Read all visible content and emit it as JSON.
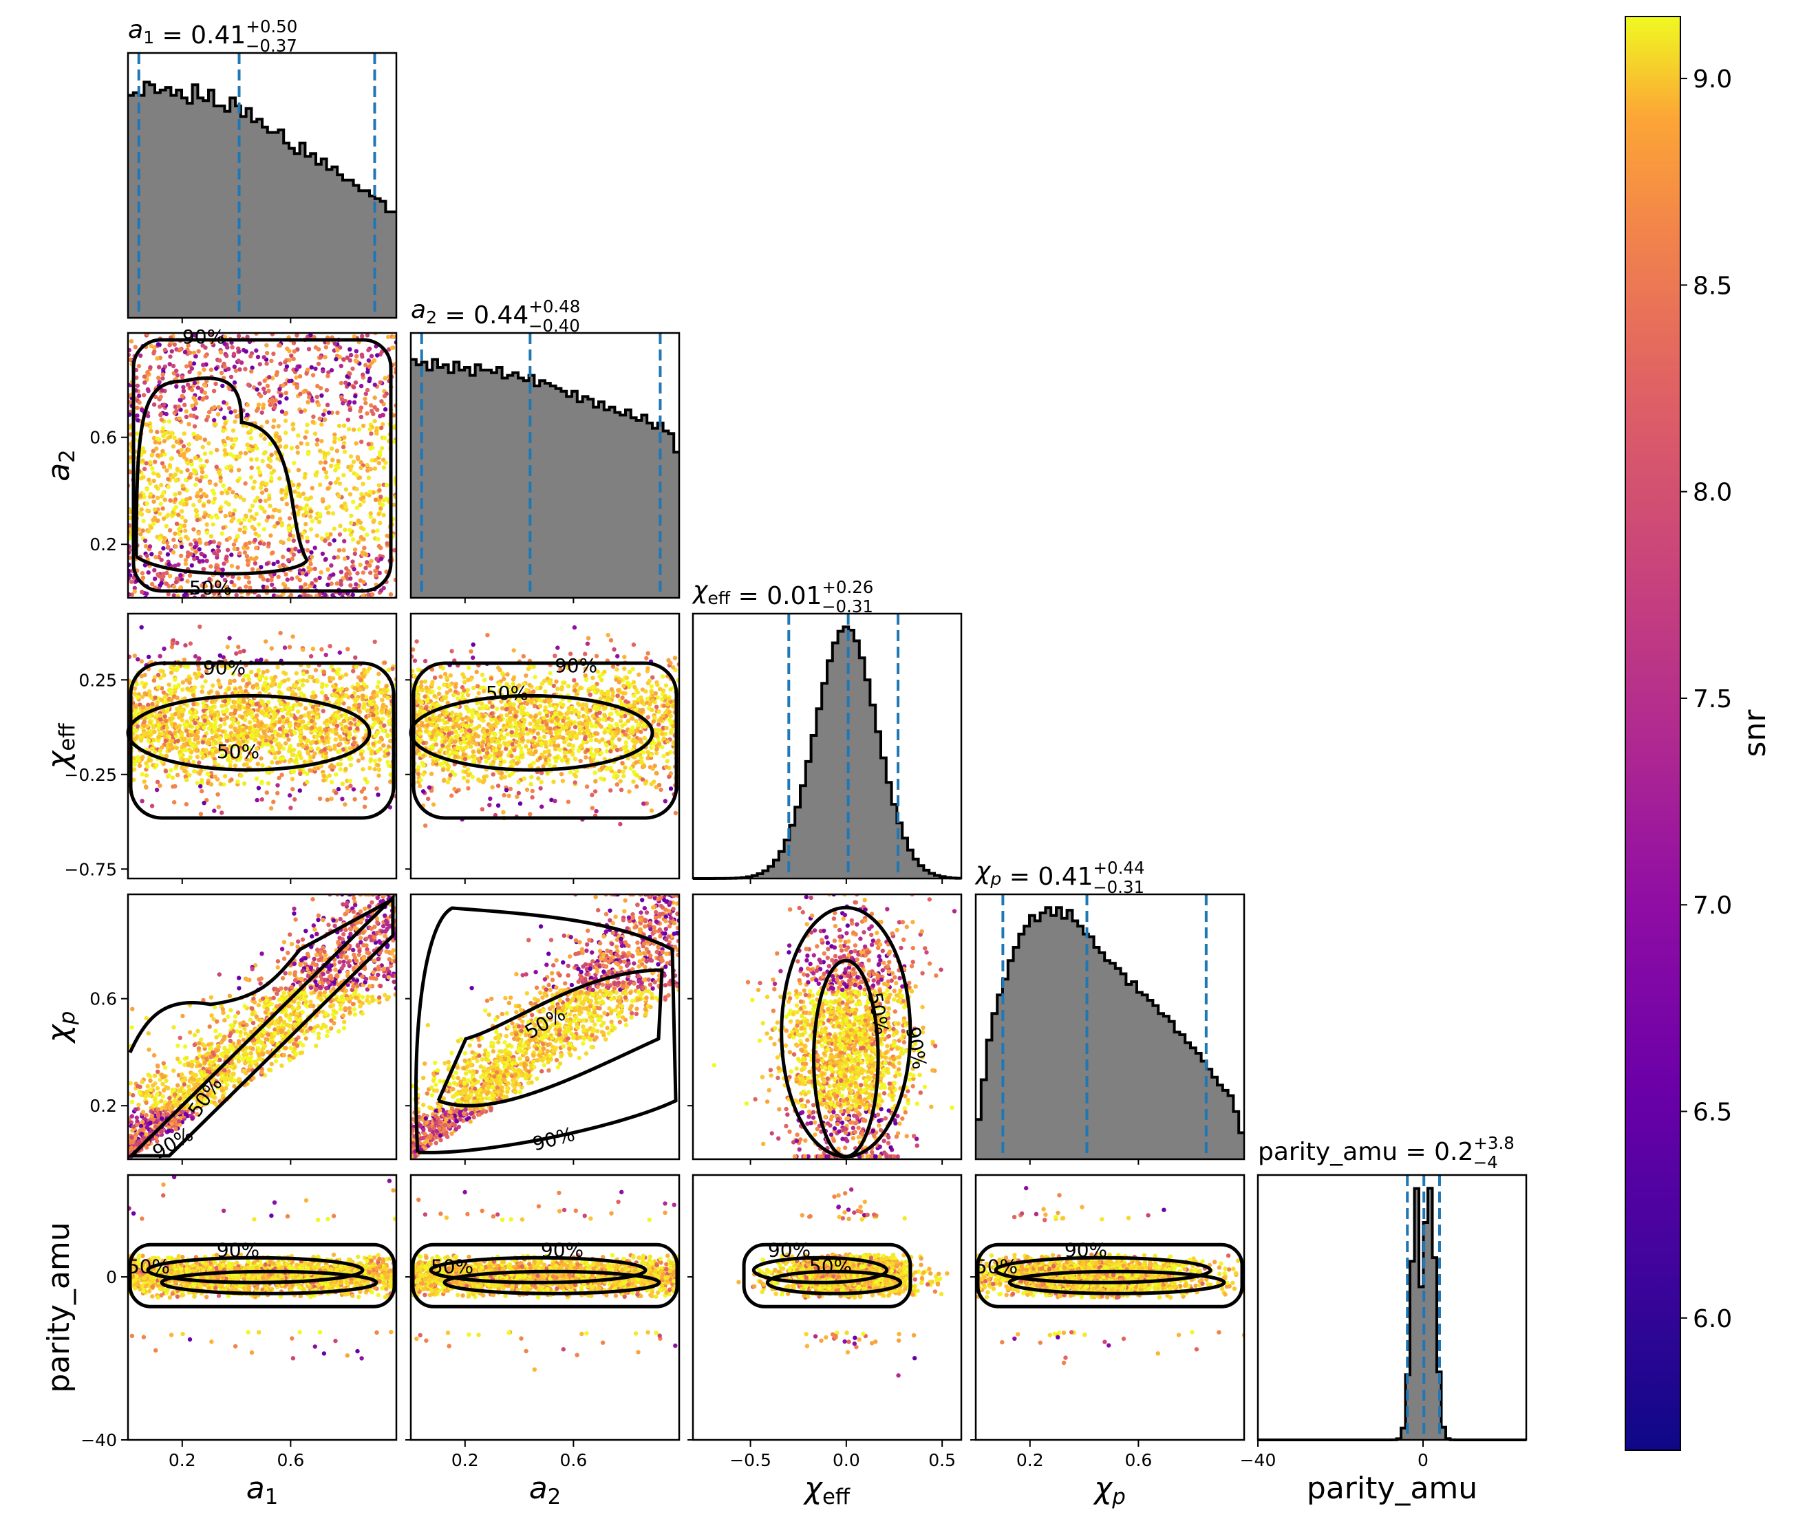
{
  "chart_data": {
    "type": "corner",
    "parameters": [
      {
        "key": "a1",
        "label": "a_1",
        "range": [
          0.0,
          0.99
        ],
        "median": 0.41,
        "plus": "0.50",
        "minus": "0.37",
        "title_value": "0.41",
        "hist": [
          0.84,
          0.85,
          0.84,
          0.89,
          0.88,
          0.85,
          0.86,
          0.87,
          0.84,
          0.86,
          0.83,
          0.81,
          0.88,
          0.83,
          0.82,
          0.86,
          0.8,
          0.8,
          0.78,
          0.83,
          0.8,
          0.76,
          0.79,
          0.74,
          0.75,
          0.72,
          0.7,
          0.7,
          0.71,
          0.66,
          0.64,
          0.62,
          0.66,
          0.61,
          0.62,
          0.58,
          0.6,
          0.56,
          0.57,
          0.54,
          0.52,
          0.52,
          0.5,
          0.48,
          0.48,
          0.46,
          0.45,
          0.44,
          0.4,
          0.4
        ],
        "q": [
          0.04,
          0.41,
          0.91
        ]
      },
      {
        "key": "a2",
        "label": "a_2",
        "range": [
          0.0,
          0.99
        ],
        "median": 0.44,
        "plus": "0.48",
        "minus": "0.40",
        "title_value": "0.44",
        "hist": [
          0.9,
          0.88,
          0.89,
          0.86,
          0.9,
          0.87,
          0.88,
          0.85,
          0.89,
          0.86,
          0.87,
          0.84,
          0.88,
          0.86,
          0.86,
          0.85,
          0.87,
          0.83,
          0.84,
          0.85,
          0.83,
          0.82,
          0.84,
          0.8,
          0.82,
          0.81,
          0.8,
          0.79,
          0.78,
          0.76,
          0.78,
          0.74,
          0.76,
          0.75,
          0.72,
          0.74,
          0.71,
          0.72,
          0.7,
          0.69,
          0.71,
          0.68,
          0.67,
          0.69,
          0.66,
          0.64,
          0.66,
          0.63,
          0.62,
          0.55
        ],
        "q": [
          0.04,
          0.44,
          0.92
        ]
      },
      {
        "key": "chi_eff",
        "label": "chi_eff",
        "range": [
          -0.8,
          0.6
        ],
        "median": 0.01,
        "plus": "0.26",
        "minus": "0.31",
        "title_value": "0.01",
        "q": [
          -0.3,
          0.01,
          0.27
        ]
      },
      {
        "key": "chi_p",
        "label": "chi_p",
        "range": [
          0.0,
          0.99
        ],
        "median": 0.41,
        "plus": "0.44",
        "minus": "0.31",
        "title_value": "0.41",
        "hist": [
          0.15,
          0.3,
          0.45,
          0.55,
          0.62,
          0.68,
          0.75,
          0.8,
          0.85,
          0.88,
          0.92,
          0.9,
          0.93,
          0.95,
          0.92,
          0.95,
          0.91,
          0.94,
          0.9,
          0.88,
          0.85,
          0.84,
          0.8,
          0.78,
          0.75,
          0.74,
          0.72,
          0.7,
          0.66,
          0.67,
          0.63,
          0.62,
          0.6,
          0.58,
          0.55,
          0.54,
          0.52,
          0.48,
          0.47,
          0.44,
          0.42,
          0.4,
          0.37,
          0.34,
          0.31,
          0.28,
          0.26,
          0.24,
          0.18,
          0.1
        ],
        "q": [
          0.1,
          0.41,
          0.85
        ]
      },
      {
        "key": "parity_amu",
        "label": "parity_amu",
        "range": [
          -40,
          25
        ],
        "median": 0.2,
        "plus": "3.8",
        "minus": "4",
        "title_value": "0.2",
        "q": [
          -3.8,
          0.2,
          4.0
        ]
      }
    ],
    "titles": [
      "a_1 = 0.41 (+0.50 / -0.37)",
      "a_2 = 0.44 (+0.48 / -0.40)",
      "chi_eff = 0.01 (+0.26 / -0.31)",
      "chi_p = 0.41 (+0.44 / -0.31)",
      "parity_amu = 0.2 (+3.8 / -4)"
    ],
    "x_tick_labels": {
      "a1": [
        "0.2",
        "0.6"
      ],
      "a2": [
        "0.2",
        "0.6"
      ],
      "chi_eff": [
        "−0.5",
        "0.0",
        "0.5"
      ],
      "chi_p": [
        "0.2",
        "0.6"
      ],
      "parity_amu": [
        "−40",
        "0"
      ]
    },
    "y_tick_labels": {
      "a2": [
        "0.6",
        "0.2"
      ],
      "chi_eff": [
        "0.25",
        "−0.25",
        "−0.75"
      ],
      "chi_p": [
        "0.6",
        "0.2"
      ],
      "parity_amu": [
        "0",
        "−40"
      ]
    },
    "contour_levels": [
      "50%",
      "90%"
    ],
    "colorbar": {
      "label": "snr",
      "cmap": "plasma",
      "range": [
        5.68,
        9.15
      ],
      "ticks": [
        "6.0",
        "6.5",
        "7.0",
        "7.5",
        "8.0",
        "8.5",
        "9.0"
      ]
    },
    "colors": {
      "hist_fill": "#808080",
      "hist_edge": "#000000",
      "quantile_line": "#1f77b4",
      "contour": "#000000"
    }
  }
}
